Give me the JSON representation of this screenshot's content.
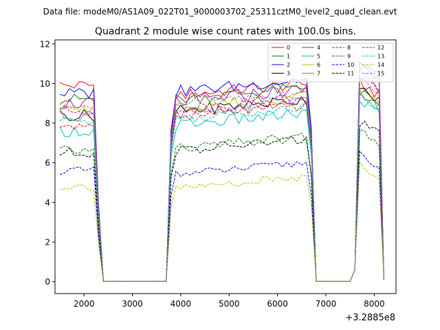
{
  "suptitle": "Data file: modeM0/AS1A09_022T01_9000003702_25311cztM0_level2_quad_clean.evt",
  "chart_data": {
    "type": "line",
    "title": "Quadrant 2 module wise count rates with 100.0s bins.",
    "xlabel": "",
    "ylabel": "",
    "x_offset_label": "+3.2885e8",
    "xlim": [
      1400,
      8450
    ],
    "ylim": [
      -0.6,
      12.2
    ],
    "xticks": [
      2000,
      3000,
      4000,
      5000,
      6000,
      7000,
      8000
    ],
    "xtick_labels": [
      "2000",
      "3000",
      "4000",
      "5000",
      "6000",
      "7000",
      "8000"
    ],
    "yticks": [
      0,
      2,
      4,
      6,
      8,
      10,
      12
    ],
    "ytick_labels": [
      "0",
      "2",
      "4",
      "6",
      "8",
      "10",
      "12"
    ],
    "grid": false,
    "legend_position": "top-right",
    "legend_columns": 4,
    "x": [
      1500,
      1600,
      1700,
      1800,
      1900,
      2000,
      2100,
      2200,
      2300,
      2400,
      2500,
      2600,
      2700,
      2800,
      2900,
      3000,
      3100,
      3200,
      3300,
      3400,
      3500,
      3600,
      3700,
      3800,
      3900,
      4000,
      4100,
      4200,
      4300,
      4400,
      4500,
      4600,
      4700,
      4800,
      4900,
      5000,
      5100,
      5200,
      5300,
      5400,
      5500,
      5600,
      5700,
      5800,
      5900,
      6000,
      6100,
      6200,
      6300,
      6400,
      6500,
      6600,
      6700,
      6800,
      6900,
      7000,
      7100,
      7200,
      7300,
      7400,
      7500,
      7600,
      7700,
      7800,
      7900,
      8000,
      8100,
      8200
    ],
    "series": [
      {
        "name": "0",
        "color": "#ff0000",
        "dash": "solid",
        "base": 10.1,
        "pre": 9.9,
        "post": 9.4,
        "tail": 10.0,
        "noise": 0.3
      },
      {
        "name": "1",
        "color": "#008000",
        "dash": "solid",
        "base": 9.4,
        "pre": 9.2,
        "post": 9.2,
        "tail": 9.6,
        "noise": 0.3
      },
      {
        "name": "2",
        "color": "#0000ff",
        "dash": "solid",
        "base": 9.7,
        "pre": 9.5,
        "post": 9.6,
        "tail": 10.8,
        "noise": 0.3
      },
      {
        "name": "3",
        "color": "#000000",
        "dash": "solid",
        "base": 8.5,
        "pre": 8.4,
        "post": 8.6,
        "tail": 9.7,
        "noise": 0.3
      },
      {
        "name": "4",
        "color": "#bf00bf",
        "dash": "solid",
        "base": 9.2,
        "pre": 9.0,
        "post": 9.1,
        "tail": 10.9,
        "noise": 0.35
      },
      {
        "name": "5",
        "color": "#00bfbf",
        "dash": "solid",
        "base": 7.8,
        "pre": 7.6,
        "post": 7.9,
        "tail": 9.2,
        "noise": 0.3
      },
      {
        "name": "6",
        "color": "#bfbf00",
        "dash": "solid",
        "base": 8.9,
        "pre": 8.7,
        "post": 8.8,
        "tail": 9.6,
        "noise": 0.3
      },
      {
        "name": "7",
        "color": "#808080",
        "dash": "solid",
        "base": 8.6,
        "pre": 8.4,
        "post": 8.5,
        "tail": 9.4,
        "noise": 0.3
      },
      {
        "name": "8",
        "color": "#ff0000",
        "dash": "dashed",
        "base": 8.1,
        "pre": 7.9,
        "post": 8.3,
        "tail": 10.4,
        "noise": 0.25
      },
      {
        "name": "9",
        "color": "#008000",
        "dash": "dashed",
        "base": 6.8,
        "pre": 6.6,
        "post": 6.7,
        "tail": 7.6,
        "noise": 0.25
      },
      {
        "name": "10",
        "color": "#0000ff",
        "dash": "dashed",
        "base": 5.9,
        "pre": 5.6,
        "post": 5.4,
        "tail": 6.4,
        "noise": 0.2
      },
      {
        "name": "11",
        "color": "#000000",
        "dash": "dashed",
        "base": 6.8,
        "pre": 6.5,
        "post": 6.6,
        "tail": 8.0,
        "noise": 0.25
      },
      {
        "name": "12",
        "color": "#bf00bf",
        "dash": "dashed",
        "base": 8.8,
        "pre": 8.6,
        "post": 8.7,
        "tail": 10.2,
        "noise": 0.3
      },
      {
        "name": "13",
        "color": "#00bfbf",
        "dash": "dashed",
        "base": 8.3,
        "pre": 8.1,
        "post": 8.2,
        "tail": 9.3,
        "noise": 0.25
      },
      {
        "name": "14",
        "color": "#bfbf00",
        "dash": "dashed",
        "base": 5.0,
        "pre": 4.8,
        "post": 4.7,
        "tail": 5.9,
        "noise": 0.2
      },
      {
        "name": "15",
        "color": "#808080",
        "dash": "dashed",
        "base": 9.0,
        "pre": 8.8,
        "post": 9.0,
        "tail": 10.1,
        "noise": 0.3
      }
    ]
  }
}
